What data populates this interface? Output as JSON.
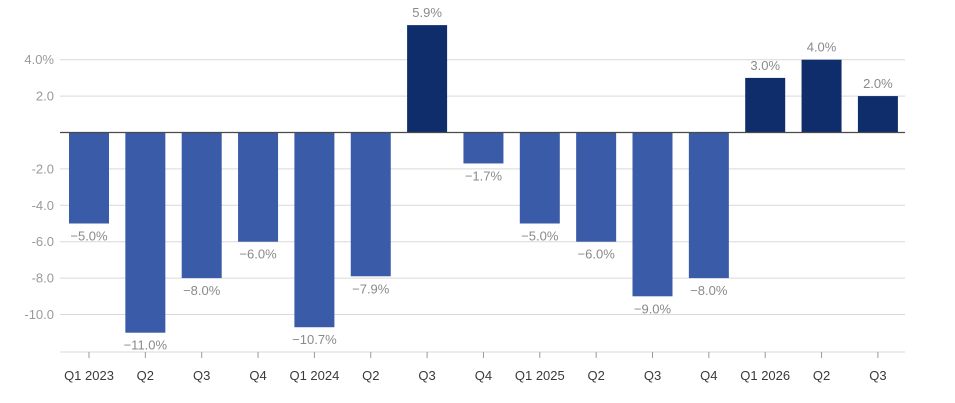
{
  "chart_data": {
    "type": "bar",
    "categories": [
      "Q1 2023",
      "Q2",
      "Q3",
      "Q4",
      "Q1 2024",
      "Q2",
      "Q3",
      "Q4",
      "Q1 2025",
      "Q2",
      "Q3",
      "Q4",
      "Q1 2026",
      "Q2",
      "Q3"
    ],
    "values": [
      -5.0,
      -11.0,
      -8.0,
      -6.0,
      -10.7,
      -7.9,
      5.9,
      -1.7,
      -5.0,
      -6.0,
      -9.0,
      -8.0,
      3.0,
      4.0,
      2.0
    ],
    "data_labels": [
      "−5.0%",
      "−11.0%",
      "−8.0%",
      "−6.0%",
      "−10.7%",
      "−7.9%",
      "5.9%",
      "−1.7%",
      "−5.0%",
      "−6.0%",
      "−9.0%",
      "−8.0%",
      "3.0%",
      "4.0%",
      "2.0%"
    ],
    "y_ticks": [
      4.0,
      2.0,
      -2.0,
      -4.0,
      -6.0,
      -8.0,
      -10.0
    ],
    "y_tick_labels": [
      "4.0%",
      "2.0",
      "-2.0",
      "-4.0",
      "-6.0",
      "-8.0",
      "-10.0"
    ],
    "ylim": [
      -12.2,
      6.3
    ],
    "grid": true,
    "colors": {
      "negative": "#3a5ba8",
      "positive": "#0f2d6b",
      "grid": "#d9d9d9",
      "zero_line": "#4a4a4a"
    }
  }
}
